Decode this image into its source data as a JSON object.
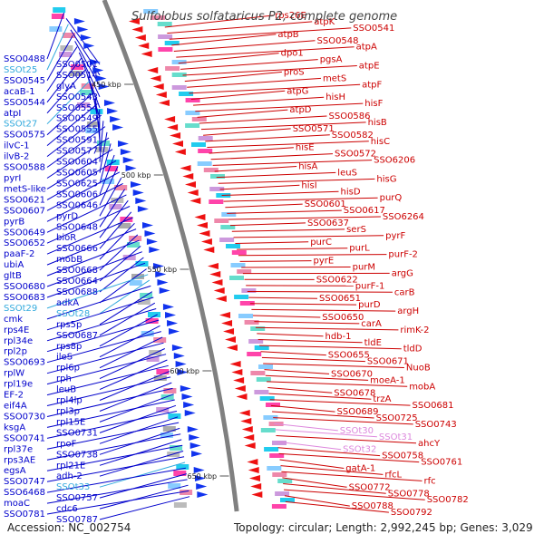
{
  "title": "Sulfolobus solfataricus P2, complete genome",
  "footer": {
    "accession": "Accession: NC_002754",
    "topology": "Topology: circular; Length: 2,992,245 bp; Genes: 3,029"
  },
  "kbp_marks": [
    "450 kbp",
    "500 kbp",
    "550 kbp",
    "600 kbp",
    "650 kbp"
  ],
  "colors": {
    "left_labels": "#0000cc",
    "right_labels": "#cc0000",
    "trna_left": "#33aadd",
    "trna_right": "#dd88dd",
    "backbone": "#808080",
    "forward_arrows": "#1133ee",
    "reverse_arrows": "#ee1111",
    "feature_fill": "#22ccee"
  },
  "left_labels": [
    {
      "text": "SSO0488",
      "kind": "gene"
    },
    {
      "text": "SSO0501",
      "kind": "gene"
    },
    {
      "text": "SSOt25",
      "kind": "trna"
    },
    {
      "text": "SSO0514",
      "kind": "gene"
    },
    {
      "text": "SSO0545",
      "kind": "gene"
    },
    {
      "text": "glyA",
      "kind": "gene"
    },
    {
      "text": "acaB-1",
      "kind": "gene"
    },
    {
      "text": "SSO0543",
      "kind": "gene"
    },
    {
      "text": "SSO0544",
      "kind": "gene"
    },
    {
      "text": "SSO0554",
      "kind": "gene"
    },
    {
      "text": "atpI",
      "kind": "gene"
    },
    {
      "text": "SSO0549",
      "kind": "gene"
    },
    {
      "text": "SSOt27",
      "kind": "trna"
    },
    {
      "text": "SSO0555",
      "kind": "gene"
    },
    {
      "text": "SSO0575",
      "kind": "gene"
    },
    {
      "text": "SSO0591",
      "kind": "gene"
    },
    {
      "text": "ilvC-1",
      "kind": "gene"
    },
    {
      "text": "SSO0577",
      "kind": "gene"
    },
    {
      "text": "ilvB-2",
      "kind": "gene"
    },
    {
      "text": "SSO0604",
      "kind": "gene"
    },
    {
      "text": "SSO0588",
      "kind": "gene"
    },
    {
      "text": "SSO0605",
      "kind": "gene"
    },
    {
      "text": "pyrI",
      "kind": "gene"
    },
    {
      "text": "SSO0625",
      "kind": "gene"
    },
    {
      "text": "metS-like",
      "kind": "gene"
    },
    {
      "text": "SSO0606",
      "kind": "gene"
    },
    {
      "text": "SSO0621",
      "kind": "gene"
    },
    {
      "text": "SSO0646",
      "kind": "gene"
    },
    {
      "text": "SSO0607",
      "kind": "gene"
    },
    {
      "text": "pyrD",
      "kind": "gene"
    },
    {
      "text": "pyrB",
      "kind": "gene"
    },
    {
      "text": "SSO0648",
      "kind": "gene"
    },
    {
      "text": "SSO0649",
      "kind": "gene"
    },
    {
      "text": "bioR",
      "kind": "gene"
    },
    {
      "text": "SSO0652",
      "kind": "gene"
    },
    {
      "text": "SSO0666",
      "kind": "gene"
    },
    {
      "text": "paaF-2",
      "kind": "gene"
    },
    {
      "text": "mobB",
      "kind": "gene"
    },
    {
      "text": "ubiA",
      "kind": "gene"
    },
    {
      "text": "SSO0668",
      "kind": "gene"
    },
    {
      "text": "gltB",
      "kind": "gene"
    },
    {
      "text": "SSO0664",
      "kind": "gene"
    },
    {
      "text": "SSO0680",
      "kind": "gene"
    },
    {
      "text": "SSO0688",
      "kind": "gene"
    },
    {
      "text": "SSO0683",
      "kind": "gene"
    },
    {
      "text": "adkA",
      "kind": "gene"
    },
    {
      "text": "SSOt29",
      "kind": "trna"
    },
    {
      "text": "SSOt28",
      "kind": "trna"
    },
    {
      "text": "cmk",
      "kind": "gene"
    },
    {
      "text": "rps5p",
      "kind": "gene"
    },
    {
      "text": "rps4E",
      "kind": "gene"
    },
    {
      "text": "SSO0687",
      "kind": "gene"
    },
    {
      "text": "rpl34e",
      "kind": "gene"
    },
    {
      "text": "rps8p",
      "kind": "gene"
    },
    {
      "text": "rpl2p",
      "kind": "gene"
    },
    {
      "text": "ileS",
      "kind": "gene"
    },
    {
      "text": "SSO0693",
      "kind": "gene"
    },
    {
      "text": "rpl6p",
      "kind": "gene"
    },
    {
      "text": "rplW",
      "kind": "gene"
    },
    {
      "text": "rph",
      "kind": "gene"
    },
    {
      "text": "rpl19e",
      "kind": "gene"
    },
    {
      "text": "leuB",
      "kind": "gene"
    },
    {
      "text": "EF-2",
      "kind": "gene"
    },
    {
      "text": "rpl4lp",
      "kind": "gene"
    },
    {
      "text": "eif4A",
      "kind": "gene"
    },
    {
      "text": "rpl3p",
      "kind": "gene"
    },
    {
      "text": "SSO0730",
      "kind": "gene"
    },
    {
      "text": "rpl15E",
      "kind": "gene"
    },
    {
      "text": "ksgA",
      "kind": "gene"
    },
    {
      "text": "SSO0731",
      "kind": "gene"
    },
    {
      "text": "SSO0741",
      "kind": "gene"
    },
    {
      "text": "rpoF",
      "kind": "gene"
    },
    {
      "text": "rpl37e",
      "kind": "gene"
    },
    {
      "text": "SSO0738",
      "kind": "gene"
    },
    {
      "text": "rps3AE",
      "kind": "gene"
    },
    {
      "text": "rpl21E",
      "kind": "gene"
    },
    {
      "text": "egsA",
      "kind": "gene"
    },
    {
      "text": "adh-2",
      "kind": "gene"
    },
    {
      "text": "SSO0747",
      "kind": "gene"
    },
    {
      "text": "SSOt33",
      "kind": "trna"
    },
    {
      "text": "SSO6468",
      "kind": "gene"
    },
    {
      "text": "SSO0757",
      "kind": "gene"
    },
    {
      "text": "moaC",
      "kind": "gene"
    },
    {
      "text": "cdc6",
      "kind": "gene"
    },
    {
      "text": "SSO0781",
      "kind": "gene"
    },
    {
      "text": "SSO0787",
      "kind": "gene"
    }
  ],
  "right_labels": [
    {
      "text": "rps26E",
      "kind": "gene"
    },
    {
      "text": "atpK",
      "kind": "gene"
    },
    {
      "text": "SSO0541",
      "kind": "gene"
    },
    {
      "text": "atpB",
      "kind": "gene"
    },
    {
      "text": "SSO0548",
      "kind": "gene"
    },
    {
      "text": "atpA",
      "kind": "gene"
    },
    {
      "text": "dpo1",
      "kind": "gene"
    },
    {
      "text": "pgsA",
      "kind": "gene"
    },
    {
      "text": "atpE",
      "kind": "gene"
    },
    {
      "text": "proS",
      "kind": "gene"
    },
    {
      "text": "metS",
      "kind": "gene"
    },
    {
      "text": "atpF",
      "kind": "gene"
    },
    {
      "text": "atpG",
      "kind": "gene"
    },
    {
      "text": "hisH",
      "kind": "gene"
    },
    {
      "text": "hisF",
      "kind": "gene"
    },
    {
      "text": "atpD",
      "kind": "gene"
    },
    {
      "text": "SSO0586",
      "kind": "gene"
    },
    {
      "text": "hisB",
      "kind": "gene"
    },
    {
      "text": "SSO0571",
      "kind": "gene"
    },
    {
      "text": "SSO0582",
      "kind": "gene"
    },
    {
      "text": "hisC",
      "kind": "gene"
    },
    {
      "text": "hisE",
      "kind": "gene"
    },
    {
      "text": "SSO0572",
      "kind": "gene"
    },
    {
      "text": "SSO6206",
      "kind": "gene"
    },
    {
      "text": "hisA",
      "kind": "gene"
    },
    {
      "text": "leuS",
      "kind": "gene"
    },
    {
      "text": "hisG",
      "kind": "gene"
    },
    {
      "text": "hisI",
      "kind": "gene"
    },
    {
      "text": "hisD",
      "kind": "gene"
    },
    {
      "text": "purQ",
      "kind": "gene"
    },
    {
      "text": "SSO0601",
      "kind": "gene"
    },
    {
      "text": "SSO0617",
      "kind": "gene"
    },
    {
      "text": "SSO6264",
      "kind": "gene"
    },
    {
      "text": "SSO0637",
      "kind": "gene"
    },
    {
      "text": "serS",
      "kind": "gene"
    },
    {
      "text": "pyrF",
      "kind": "gene"
    },
    {
      "text": "purC",
      "kind": "gene"
    },
    {
      "text": "purL",
      "kind": "gene"
    },
    {
      "text": "purF-2",
      "kind": "gene"
    },
    {
      "text": "pyrE",
      "kind": "gene"
    },
    {
      "text": "purM",
      "kind": "gene"
    },
    {
      "text": "argG",
      "kind": "gene"
    },
    {
      "text": "SSO0622",
      "kind": "gene"
    },
    {
      "text": "purF-1",
      "kind": "gene"
    },
    {
      "text": "carB",
      "kind": "gene"
    },
    {
      "text": "SSO0651",
      "kind": "gene"
    },
    {
      "text": "purD",
      "kind": "gene"
    },
    {
      "text": "argH",
      "kind": "gene"
    },
    {
      "text": "SSO0650",
      "kind": "gene"
    },
    {
      "text": "carA",
      "kind": "gene"
    },
    {
      "text": "rimK-2",
      "kind": "gene"
    },
    {
      "text": "hdb-1",
      "kind": "gene"
    },
    {
      "text": "tldE",
      "kind": "gene"
    },
    {
      "text": "tldD",
      "kind": "gene"
    },
    {
      "text": "SSO0655",
      "kind": "gene"
    },
    {
      "text": "SSO0671",
      "kind": "gene"
    },
    {
      "text": "NuoB",
      "kind": "gene"
    },
    {
      "text": "SSO0670",
      "kind": "gene"
    },
    {
      "text": "moeA-1",
      "kind": "gene"
    },
    {
      "text": "mobA",
      "kind": "gene"
    },
    {
      "text": "SSO0678",
      "kind": "gene"
    },
    {
      "text": "trzA",
      "kind": "gene"
    },
    {
      "text": "SSO0681",
      "kind": "gene"
    },
    {
      "text": "SSO0689",
      "kind": "gene"
    },
    {
      "text": "SSO0725",
      "kind": "gene"
    },
    {
      "text": "SSO0743",
      "kind": "gene"
    },
    {
      "text": "SSOt30",
      "kind": "trna"
    },
    {
      "text": "SSOt31",
      "kind": "trna"
    },
    {
      "text": "ahcY",
      "kind": "gene"
    },
    {
      "text": "SSOt32",
      "kind": "trna"
    },
    {
      "text": "SSO0758",
      "kind": "gene"
    },
    {
      "text": "SSO0761",
      "kind": "gene"
    },
    {
      "text": "gatA-1",
      "kind": "gene"
    },
    {
      "text": "rfcL",
      "kind": "gene"
    },
    {
      "text": "rfc",
      "kind": "gene"
    },
    {
      "text": "SSO0772",
      "kind": "gene"
    },
    {
      "text": "SSO0778",
      "kind": "gene"
    },
    {
      "text": "SSO0782",
      "kind": "gene"
    },
    {
      "text": "SSO0788",
      "kind": "gene"
    },
    {
      "text": "SSO0792",
      "kind": "gene"
    }
  ]
}
